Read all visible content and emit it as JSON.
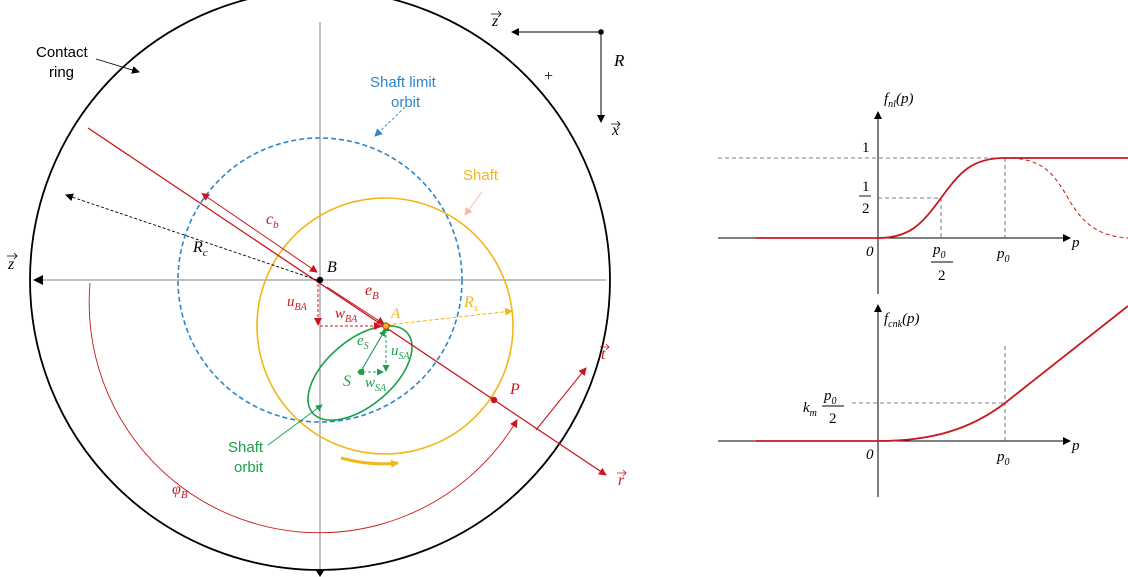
{
  "left_diagram": {
    "contact_ring_label": [
      "Contact",
      "ring"
    ],
    "shaft_limit_orbit_label": [
      "Shaft limit",
      "orbit"
    ],
    "shaft_label": "Shaft",
    "shaft_orbit_label": [
      "Shaft",
      "orbit"
    ],
    "frame_label": "R",
    "plus_sign": "+",
    "z_label": "z",
    "x_label": "x",
    "t_label": "t",
    "r_label": "r",
    "points": {
      "B": "B",
      "A": "A",
      "S": "S",
      "P": "P"
    },
    "dims": {
      "Rc": {
        "main": "R",
        "sub": "c"
      },
      "Rs": {
        "main": "R",
        "sub": "s"
      },
      "cb": {
        "main": "c",
        "sub": "b"
      },
      "eB": {
        "main": "e",
        "sub": "B"
      },
      "eS": {
        "main": "e",
        "sub": "S"
      },
      "uBA": {
        "main": "u",
        "sub": "BA"
      },
      "wBA": {
        "main": "w",
        "sub": "BA"
      },
      "uSA": {
        "main": "u",
        "sub": "SA"
      },
      "wSA": {
        "main": "w",
        "sub": "SA"
      },
      "phiB": {
        "main": "φ",
        "sub": "B"
      }
    },
    "colors": {
      "ring": "#000000",
      "limit_orbit": "#2e86c8",
      "shaft": "#f2b619",
      "shaft_orbit": "#1aa04a",
      "red": "#c8171e",
      "gray": "#808080"
    }
  },
  "graph_top": {
    "ylabel": {
      "main": "f",
      "sub": "nl",
      "arg": "(p)"
    },
    "xlabel": "p",
    "origin": "0",
    "ytick_one": "1",
    "ytick_half": {
      "num": "1",
      "den": "2"
    },
    "xtick_half": {
      "num": "p",
      "num_sub": "0",
      "den": "2"
    },
    "xtick_p0": {
      "main": "p",
      "sub": "0"
    },
    "curve_color": "#c8171e"
  },
  "graph_bottom": {
    "ylabel": {
      "main": "f",
      "sub": "cnk",
      "arg": "(p)"
    },
    "xlabel": "p",
    "origin": "0",
    "ytick": {
      "k": "k",
      "k_sub": "m",
      "num": "p",
      "num_sub": "0",
      "den": "2"
    },
    "xtick_p0": {
      "main": "p",
      "sub": "0"
    },
    "curve_color": "#c8171e"
  }
}
